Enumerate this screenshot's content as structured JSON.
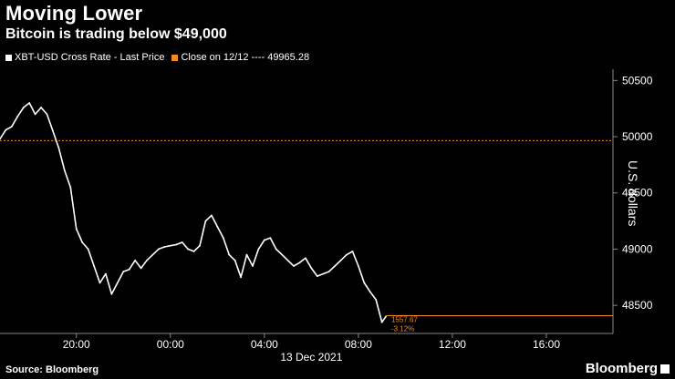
{
  "header": {
    "title": "Moving Lower",
    "subtitle": "Bitcoin is trading below $49,000"
  },
  "footer": {
    "source": "Source: Bloomberg",
    "brand": "Bloomberg"
  },
  "colors": {
    "background": "#000000",
    "series": "#ffffff",
    "reference": "#f28c1b",
    "axis": "#888888"
  },
  "chart_data": {
    "type": "line",
    "title": "Moving Lower",
    "subtitle": "Bitcoin is trading below $49,000",
    "ylabel": "U.S. dollars",
    "xlabel": "13 Dec 2021",
    "ylim": [
      48250,
      50600
    ],
    "xlim": [
      "12 Dec 2021 16:45",
      "13 Dec 2021 18:50"
    ],
    "yticks": [
      48500,
      49000,
      49500,
      50000,
      50500
    ],
    "ytick_labels": [
      "48500",
      "49000",
      "49500",
      "50000",
      "50500"
    ],
    "xticks": [
      "20:00",
      "00:00",
      "04:00",
      "08:00",
      "12:00",
      "16:00"
    ],
    "x_date_label": "13 Dec 2021",
    "legend_position": "top-left",
    "series": [
      {
        "name": "XBT-USD Cross Rate - Last Price",
        "color": "#ffffff",
        "points": [
          [
            "12 Dec 16:45",
            49980
          ],
          [
            "12 Dec 17:00",
            50060
          ],
          [
            "12 Dec 17:15",
            50090
          ],
          [
            "12 Dec 17:30",
            50180
          ],
          [
            "12 Dec 17:45",
            50260
          ],
          [
            "12 Dec 18:00",
            50300
          ],
          [
            "12 Dec 18:15",
            50200
          ],
          [
            "12 Dec 18:30",
            50260
          ],
          [
            "12 Dec 18:45",
            50200
          ],
          [
            "12 Dec 19:00",
            50050
          ],
          [
            "12 Dec 19:15",
            49900
          ],
          [
            "12 Dec 19:30",
            49700
          ],
          [
            "12 Dec 19:45",
            49550
          ],
          [
            "12 Dec 20:00",
            49180
          ],
          [
            "12 Dec 20:15",
            49060
          ],
          [
            "12 Dec 20:30",
            49000
          ],
          [
            "12 Dec 20:45",
            48850
          ],
          [
            "12 Dec 21:00",
            48700
          ],
          [
            "12 Dec 21:15",
            48780
          ],
          [
            "12 Dec 21:30",
            48600
          ],
          [
            "12 Dec 21:45",
            48700
          ],
          [
            "12 Dec 22:00",
            48800
          ],
          [
            "12 Dec 22:15",
            48820
          ],
          [
            "12 Dec 22:30",
            48900
          ],
          [
            "12 Dec 22:45",
            48830
          ],
          [
            "12 Dec 23:00",
            48900
          ],
          [
            "12 Dec 23:15",
            48950
          ],
          [
            "12 Dec 23:30",
            49000
          ],
          [
            "12 Dec 23:45",
            49020
          ],
          [
            "13 Dec 00:00",
            49030
          ],
          [
            "13 Dec 00:15",
            49040
          ],
          [
            "13 Dec 00:30",
            49060
          ],
          [
            "13 Dec 00:45",
            49000
          ],
          [
            "13 Dec 01:00",
            48980
          ],
          [
            "13 Dec 01:15",
            49030
          ],
          [
            "13 Dec 01:30",
            49250
          ],
          [
            "13 Dec 01:45",
            49300
          ],
          [
            "13 Dec 02:00",
            49200
          ],
          [
            "13 Dec 02:15",
            49100
          ],
          [
            "13 Dec 02:30",
            48950
          ],
          [
            "13 Dec 02:45",
            48900
          ],
          [
            "13 Dec 03:00",
            48750
          ],
          [
            "13 Dec 03:15",
            48950
          ],
          [
            "13 Dec 03:30",
            48850
          ],
          [
            "13 Dec 03:45",
            49000
          ],
          [
            "13 Dec 04:00",
            49080
          ],
          [
            "13 Dec 04:15",
            49100
          ],
          [
            "13 Dec 04:30",
            49000
          ],
          [
            "13 Dec 04:45",
            48950
          ],
          [
            "13 Dec 05:00",
            48900
          ],
          [
            "13 Dec 05:15",
            48850
          ],
          [
            "13 Dec 05:30",
            48880
          ],
          [
            "13 Dec 05:45",
            48920
          ],
          [
            "13 Dec 06:00",
            48830
          ],
          [
            "13 Dec 06:15",
            48760
          ],
          [
            "13 Dec 06:30",
            48780
          ],
          [
            "13 Dec 06:45",
            48800
          ],
          [
            "13 Dec 07:00",
            48850
          ],
          [
            "13 Dec 07:15",
            48900
          ],
          [
            "13 Dec 07:30",
            48950
          ],
          [
            "13 Dec 07:45",
            48980
          ],
          [
            "13 Dec 08:00",
            48850
          ],
          [
            "13 Dec 08:15",
            48700
          ],
          [
            "13 Dec 08:30",
            48620
          ],
          [
            "13 Dec 08:45",
            48550
          ],
          [
            "13 Dec 09:00",
            48350
          ],
          [
            "13 Dec 09:10",
            48400
          ]
        ]
      },
      {
        "name": "Close on 12/12 ---- 49965.28",
        "color": "#f28c1b",
        "type": "reference-line",
        "value": 49965.28
      }
    ],
    "annotations": [
      {
        "text": "1557.67",
        "color": "#f28c1b"
      },
      {
        "text": "-3.12%",
        "color": "#f28c1b"
      }
    ],
    "last_price_line": 48407.61
  }
}
